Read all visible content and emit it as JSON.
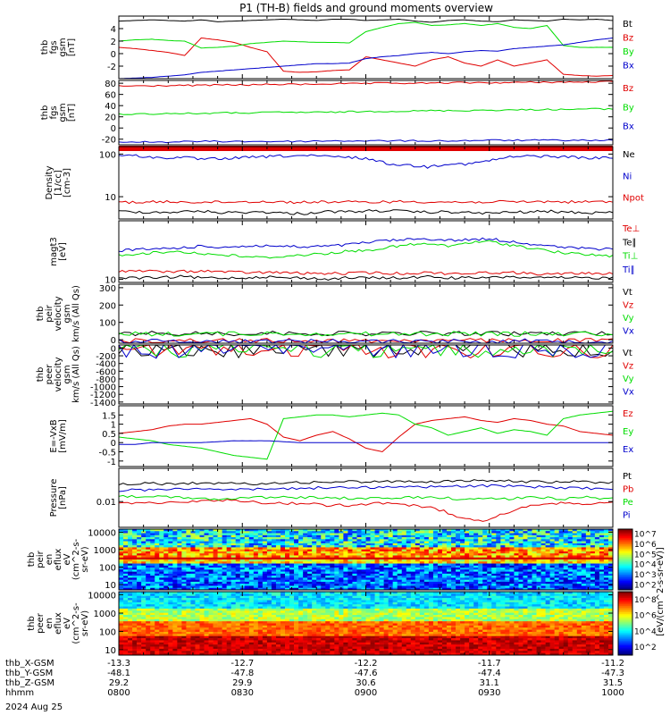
{
  "title": "P1 (TH-B) fields and ground moments overview",
  "colors": {
    "black": "#000000",
    "red": "#e00000",
    "green": "#00dd00",
    "blue": "#0000cc",
    "axis": "#000000"
  },
  "time_axis": {
    "ticks": [
      "0800",
      "0830",
      "0900",
      "0930",
      "1000"
    ],
    "rows": [
      {
        "label": "thb_X-GSM",
        "values": [
          "-13.3",
          "-12.7",
          "-12.2",
          "-11.7",
          "-11.2"
        ]
      },
      {
        "label": "thb_Y-GSM",
        "values": [
          "-48.1",
          "-47.8",
          "-47.6",
          "-47.4",
          "-47.3"
        ]
      },
      {
        "label": "thb_Z-GSM",
        "values": [
          "29.2",
          "29.9",
          "30.6",
          "31.1",
          "31.5"
        ]
      },
      {
        "label": "hhmm",
        "values": [
          "0800",
          "0830",
          "0900",
          "0930",
          "1000"
        ]
      }
    ],
    "date": "2024 Aug 25"
  },
  "colorbar_unit": "[eV/(cm^2-s-sr-eV)]",
  "chart_data": [
    {
      "id": "fgs_low",
      "type": "line",
      "ylabel": [
        "thb",
        "fgs",
        "gsm",
        "[nT]"
      ],
      "ylim": [
        -4,
        6
      ],
      "yticks": [
        -2,
        0,
        2,
        4
      ],
      "series": [
        {
          "name": "Bt",
          "color": "#000000",
          "values": [
            5.2,
            5.3,
            5.4,
            5.3,
            5.2,
            5.4,
            5.1,
            5.2,
            5.3,
            5.4,
            5.5,
            5.4,
            5.3,
            5.5,
            5.5,
            5.3,
            5.4,
            5.5,
            5.2,
            5.0,
            5.3,
            5.4,
            5.2,
            5.1,
            5.4,
            5.3,
            5.2,
            5.5,
            5.4,
            5.5,
            5.3
          ]
        },
        {
          "name": "Bz",
          "color": "#e00000",
          "values": [
            1.0,
            0.8,
            0.5,
            0.2,
            -0.3,
            2.5,
            2.2,
            1.8,
            1.0,
            0.3,
            -2.8,
            -3.0,
            -2.9,
            -2.7,
            -2.6,
            -0.5,
            -1.0,
            -1.5,
            -2.0,
            -1.0,
            -0.5,
            -1.5,
            -2.0,
            -1.0,
            -2.0,
            -1.5,
            -1.0,
            -3.3,
            -3.5,
            -3.6,
            -3.5
          ]
        },
        {
          "name": "By",
          "color": "#00dd00",
          "values": [
            2.0,
            2.2,
            2.3,
            2.1,
            2.0,
            0.9,
            1.0,
            1.2,
            1.6,
            1.8,
            2.0,
            1.9,
            1.8,
            1.8,
            1.7,
            3.5,
            4.2,
            4.8,
            5.0,
            4.5,
            4.6,
            4.8,
            4.5,
            4.8,
            4.2,
            4.0,
            4.5,
            1.3,
            1.0,
            1.0,
            1.0
          ]
        },
        {
          "name": "Bx",
          "color": "#0000cc",
          "values": [
            -4.0,
            -3.9,
            -3.8,
            -3.6,
            -3.4,
            -3.0,
            -2.8,
            -2.6,
            -2.4,
            -2.2,
            -2.0,
            -1.8,
            -1.6,
            -1.6,
            -1.5,
            -0.8,
            -0.5,
            -0.3,
            0.0,
            0.2,
            0.0,
            0.3,
            0.5,
            0.4,
            0.8,
            1.0,
            1.2,
            1.4,
            1.8,
            2.2,
            2.5
          ]
        }
      ]
    },
    {
      "id": "fgs_high",
      "type": "line",
      "ylabel": [
        "thb",
        "fgs",
        "gsm",
        "[nT]"
      ],
      "ylim": [
        -30,
        85
      ],
      "yticks": [
        -20,
        0,
        20,
        40,
        60,
        80
      ],
      "series": [
        {
          "name": "Bz",
          "color": "#e00000",
          "values": [
            75,
            75,
            76,
            76,
            77,
            77,
            78,
            78,
            79,
            79,
            80,
            80,
            80,
            81,
            81,
            81,
            82,
            82,
            82,
            83
          ]
        },
        {
          "name": "By",
          "color": "#00dd00",
          "values": [
            25,
            25,
            26,
            26,
            27,
            27,
            28,
            28,
            28,
            29,
            30,
            30,
            31,
            31,
            32,
            32,
            33,
            33,
            34,
            34
          ]
        },
        {
          "name": "Bx",
          "color": "#0000cc",
          "values": [
            -25,
            -25,
            -25,
            -24,
            -24,
            -24,
            -24,
            -24,
            -23,
            -23,
            -23,
            -23,
            -23,
            -23,
            -22,
            -22,
            -22,
            -22,
            -22,
            -22
          ]
        }
      ]
    },
    {
      "id": "density",
      "type": "line",
      "log": true,
      "ylabel": [
        "Density",
        "[1/cc]",
        "[cm-3]"
      ],
      "ylim": [
        3,
        150
      ],
      "ytick_labels": [
        "10",
        "100"
      ],
      "yticks": [
        10,
        100
      ],
      "series": [
        {
          "name": "Ne",
          "color": "#000000",
          "values": [
            4.5,
            4.4,
            4.3,
            4.4,
            4.6,
            4.2,
            4.3,
            4.4,
            4.1,
            4.0,
            4.5,
            4.4,
            4.6,
            4.7,
            4.5,
            4.3,
            4.4,
            4.2,
            4.1,
            4.3,
            4.4,
            4.5,
            4.3,
            4.2,
            4.4
          ]
        },
        {
          "name": "Ni",
          "color": "#0000cc",
          "values": [
            95,
            90,
            80,
            85,
            75,
            78,
            82,
            86,
            90,
            92,
            88,
            84,
            80,
            60,
            55,
            50,
            60,
            58,
            70,
            85,
            90,
            88,
            85,
            80,
            82
          ]
        },
        {
          "name": "Npot",
          "color": "#e00000",
          "values": [
            7.5,
            7.4,
            7.5,
            7.6,
            7.4,
            7.5,
            7.6,
            7.7,
            7.5,
            7.4,
            7.6,
            7.5,
            7.4,
            7.6,
            7.7,
            7.6,
            7.5,
            7.4,
            7.6,
            7.5,
            7.6,
            7.7,
            7.5,
            7.6,
            7.5
          ]
        }
      ]
    },
    {
      "id": "temperature",
      "type": "line",
      "log": true,
      "ylabel": [
        "magt3",
        "[eV]"
      ],
      "ylim": [
        8,
        600
      ],
      "ytick_labels": [
        "10"
      ],
      "yticks": [
        10
      ],
      "series": [
        {
          "name": "Te⊥",
          "color": "#e00000",
          "values": [
            18,
            18,
            17,
            17,
            18,
            17,
            16,
            16,
            16,
            15,
            15,
            15,
            16,
            15,
            15,
            16,
            15,
            15,
            16,
            16,
            15,
            14,
            15,
            15,
            15
          ]
        },
        {
          "name": "Te∥",
          "color": "#000000",
          "values": [
            11,
            11,
            11,
            12,
            11,
            11,
            11,
            12,
            11,
            11,
            10,
            11,
            11,
            11,
            11,
            12,
            11,
            11,
            11,
            12,
            11,
            11,
            11,
            11,
            11
          ]
        },
        {
          "name": "Ti⊥",
          "color": "#00dd00",
          "values": [
            55,
            60,
            65,
            70,
            60,
            55,
            50,
            45,
            50,
            55,
            60,
            70,
            75,
            90,
            110,
            120,
            100,
            130,
            140,
            110,
            90,
            70,
            60,
            55,
            50
          ]
        },
        {
          "name": "Ti∥",
          "color": "#0000cc",
          "values": [
            75,
            80,
            85,
            90,
            100,
            95,
            100,
            105,
            100,
            95,
            100,
            110,
            130,
            150,
            160,
            170,
            150,
            160,
            170,
            140,
            120,
            100,
            90,
            85,
            80
          ]
        }
      ]
    },
    {
      "id": "velocity_peir",
      "type": "line",
      "ylabel": [
        "thb",
        "peir",
        "velocity",
        "gsm",
        "km/s (All Qs)"
      ],
      "ylim": [
        -20,
        320
      ],
      "yticks": [
        0,
        100,
        200,
        300
      ],
      "series": [
        {
          "name": "Vt",
          "color": "#000000",
          "values": [
            35,
            36,
            35,
            37,
            36,
            38,
            37,
            36,
            35,
            36,
            37,
            36,
            35,
            36,
            37,
            36
          ]
        },
        {
          "name": "Vz",
          "color": "#e00000",
          "values": [
            -5,
            -5,
            -5,
            -4,
            -5,
            -5,
            -4,
            -5,
            -5,
            -4,
            -5,
            -5,
            -4,
            -5,
            -5,
            -5
          ]
        },
        {
          "name": "Vy",
          "color": "#00dd00",
          "values": [
            33,
            34,
            33,
            35,
            34,
            36,
            35,
            34,
            33,
            34,
            35,
            34,
            33,
            34,
            35,
            34
          ]
        },
        {
          "name": "Vx",
          "color": "#0000cc",
          "values": [
            -8,
            -8,
            -8,
            -8,
            -8,
            -8,
            -8,
            -8,
            -8,
            -8,
            -8,
            -8,
            -8,
            -8,
            -8,
            -8
          ]
        }
      ]
    },
    {
      "id": "velocity_peer",
      "type": "line",
      "ylabel": [
        "thb",
        "peer",
        "velocity",
        "gsm",
        "km/s (All Qs)"
      ],
      "ylim": [
        -1450,
        80
      ],
      "yticks": [
        0,
        -200,
        -400,
        -600,
        -800,
        -1000,
        -1200,
        -1400
      ],
      "series": [
        {
          "name": "Vt",
          "color": "#000000",
          "values": [
            5,
            5,
            5,
            5,
            5,
            5,
            5,
            5,
            5,
            5,
            5,
            5
          ]
        },
        {
          "name": "Vz",
          "color": "#e00000",
          "values": [
            0,
            0,
            0,
            0,
            0,
            0,
            0,
            0,
            0,
            0,
            0,
            0
          ]
        },
        {
          "name": "Vy",
          "color": "#00dd00",
          "values": [
            0,
            0,
            0,
            0,
            0,
            0,
            0,
            0,
            0,
            0,
            0,
            0
          ]
        },
        {
          "name": "Vx",
          "color": "#0000cc",
          "values": [
            -2,
            -2,
            -2,
            -2,
            -2,
            -2,
            -2,
            -2,
            -2,
            -2,
            -2,
            -2
          ]
        }
      ]
    },
    {
      "id": "efield",
      "type": "line",
      "ylabel": [
        "E=-VxB",
        "[mV/m]"
      ],
      "ylim": [
        -1.3,
        2.0
      ],
      "yticks": [
        -1.0,
        -0.5,
        0.0,
        0.5,
        1.0,
        1.5
      ],
      "series": [
        {
          "name": "Ez",
          "color": "#e00000",
          "values": [
            0.5,
            0.6,
            0.7,
            0.9,
            1.0,
            1.0,
            1.1,
            1.2,
            1.3,
            1.0,
            0.3,
            0.1,
            0.4,
            0.6,
            0.2,
            -0.3,
            -0.5,
            0.3,
            1.0,
            1.2,
            1.3,
            1.4,
            1.2,
            1.1,
            1.3,
            1.2,
            1.0,
            0.9,
            0.6,
            0.5,
            0.4
          ]
        },
        {
          "name": "Ey",
          "color": "#00dd00",
          "values": [
            0.3,
            0.2,
            0.1,
            -0.1,
            -0.2,
            -0.3,
            -0.5,
            -0.7,
            -0.8,
            -0.9,
            1.3,
            1.4,
            1.5,
            1.5,
            1.4,
            1.5,
            1.6,
            1.5,
            1.0,
            0.8,
            0.4,
            0.6,
            0.8,
            0.5,
            0.7,
            0.6,
            0.4,
            1.3,
            1.5,
            1.6,
            1.7
          ]
        },
        {
          "name": "Ex",
          "color": "#0000cc",
          "values": [
            -0.1,
            -0.1,
            0.0,
            0.0,
            0.0,
            0.0,
            0.05,
            0.1,
            0.1,
            0.1,
            0.05,
            0.0,
            0.0,
            0.0,
            0.0,
            0.0,
            0.0,
            0.0,
            0.0,
            0.0,
            0.0,
            0.0,
            0.0,
            0.0,
            0.0,
            0.0,
            0.0,
            0.0,
            0.0,
            0.0,
            0.0
          ]
        }
      ]
    },
    {
      "id": "pressure",
      "type": "line",
      "log": true,
      "ylabel": [
        "Pressure",
        "[nPa]"
      ],
      "ylim": [
        0.002,
        0.08
      ],
      "ytick_labels": [
        "0.01"
      ],
      "yticks": [
        0.01
      ],
      "series": [
        {
          "name": "Pt",
          "color": "#000000",
          "values": [
            0.03,
            0.031,
            0.03,
            0.032,
            0.031,
            0.03,
            0.033,
            0.032,
            0.034,
            0.035,
            0.034,
            0.036,
            0.035,
            0.036,
            0.037,
            0.036,
            0.034,
            0.035,
            0.034,
            0.033
          ]
        },
        {
          "name": "Pb",
          "color": "#e00000",
          "values": [
            0.009,
            0.009,
            0.01,
            0.01,
            0.011,
            0.01,
            0.009,
            0.009,
            0.008,
            0.008,
            0.009,
            0.008,
            0.007,
            0.004,
            0.003,
            0.005,
            0.008,
            0.009,
            0.009,
            0.009
          ]
        },
        {
          "name": "Pe",
          "color": "#00dd00",
          "values": [
            0.014,
            0.014,
            0.013,
            0.012,
            0.012,
            0.013,
            0.013,
            0.013,
            0.013,
            0.012,
            0.012,
            0.013,
            0.013,
            0.012,
            0.012,
            0.012,
            0.013,
            0.012,
            0.013,
            0.012
          ]
        },
        {
          "name": "Pi",
          "color": "#0000cc",
          "values": [
            0.02,
            0.021,
            0.022,
            0.023,
            0.022,
            0.021,
            0.022,
            0.023,
            0.024,
            0.025,
            0.024,
            0.026,
            0.025,
            0.026,
            0.027,
            0.026,
            0.025,
            0.024,
            0.023,
            0.022
          ]
        }
      ]
    },
    {
      "id": "spec_peir",
      "type": "heatmap",
      "log": true,
      "ylabel": [
        "thb",
        "peir",
        "en",
        "eflux",
        "eV",
        "(cm^2-s-",
        "sr-eV)"
      ],
      "ylim": [
        5,
        15000
      ],
      "yticks": [
        10,
        100,
        1000,
        10000
      ],
      "ytick_labels": [
        "10",
        "100",
        "1000",
        "10000"
      ],
      "colorbar": {
        "labels": [
          "10^2",
          "10^3",
          "10^4",
          "10^5",
          "10^6",
          "10^7"
        ],
        "unit": "[eV/(cm^2-s-sr-eV)] (All Qs)"
      }
    },
    {
      "id": "spec_peer",
      "type": "heatmap",
      "log": true,
      "ylabel": [
        "thb",
        "peer",
        "en",
        "eflux",
        "eV",
        "(cm^2-s-",
        "sr-eV)"
      ],
      "ylim": [
        5,
        15000
      ],
      "yticks": [
        10,
        100,
        1000,
        10000
      ],
      "ytick_labels": [
        "10",
        "100",
        "1000",
        "10000"
      ],
      "colorbar": {
        "labels": [
          "10^2",
          "10^4",
          "10^6",
          "10^8"
        ],
        "unit": "[eV/(cm^2-s-sr-eV)]"
      }
    }
  ]
}
